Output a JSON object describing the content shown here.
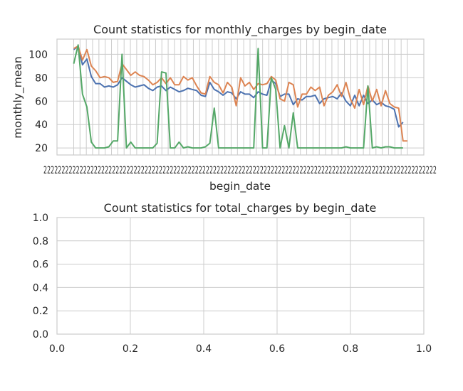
{
  "chart_data": [
    {
      "type": "line",
      "title": "Count statistics for monthly_charges by begin_date",
      "xlabel": "begin_date",
      "ylabel": "monthly_mean",
      "ylim": [
        14,
        113
      ],
      "yticks": [
        20,
        40,
        60,
        80,
        100
      ],
      "grid": true,
      "legend": "none",
      "x_tick_text": "2222222222222222222222222222222222222222222222222222222222222222222222222222222222222222222222222222222222222",
      "series": [
        {
          "color": "#4c72b0",
          "values": [
            104,
            107,
            91,
            96,
            81,
            75,
            75,
            72,
            73,
            72,
            74,
            80,
            77,
            74,
            72,
            73,
            74,
            71,
            69,
            72,
            73,
            69,
            72,
            70,
            68,
            69,
            71,
            70,
            69,
            65,
            64,
            76,
            70,
            68,
            65,
            68,
            67,
            62,
            68,
            66,
            66,
            63,
            68,
            66,
            65,
            78,
            75,
            64,
            66,
            66,
            57,
            62,
            61,
            64,
            64,
            65,
            58,
            62,
            63,
            64,
            62,
            67,
            60,
            56,
            65,
            56,
            65,
            58,
            61,
            57,
            59,
            56,
            55,
            53,
            38,
            42
          ]
        },
        {
          "color": "#dd8452",
          "values": [
            105,
            107,
            95,
            104,
            90,
            86,
            80,
            81,
            80,
            76,
            77,
            92,
            87,
            82,
            85,
            82,
            81,
            78,
            74,
            76,
            80,
            75,
            80,
            74,
            74,
            81,
            78,
            80,
            73,
            67,
            66,
            81,
            76,
            74,
            67,
            76,
            72,
            56,
            80,
            73,
            76,
            70,
            75,
            74,
            75,
            81,
            78,
            62,
            60,
            76,
            74,
            55,
            66,
            66,
            72,
            69,
            72,
            56,
            65,
            68,
            74,
            64,
            76,
            62,
            54,
            70,
            57,
            73,
            60,
            70,
            56,
            69,
            58,
            55,
            54,
            26,
            26
          ]
        },
        {
          "color": "#55a868",
          "values": [
            92,
            108,
            66,
            55,
            25,
            20,
            20,
            20,
            21,
            26,
            26,
            100,
            20,
            25,
            20,
            20,
            20,
            20,
            20,
            24,
            85,
            84,
            20,
            20,
            25,
            20,
            21,
            20,
            20,
            20,
            21,
            24,
            54,
            20,
            20,
            20,
            20,
            20,
            20,
            20,
            20,
            20,
            105,
            20,
            20,
            80,
            70,
            20,
            39,
            20,
            50,
            20,
            20,
            20,
            20,
            20,
            20,
            20,
            20,
            20,
            20,
            20,
            21,
            20,
            20,
            20,
            20,
            73,
            20,
            21,
            20,
            21,
            21,
            20,
            20,
            20
          ]
        }
      ]
    },
    {
      "type": "line",
      "title": "Count statistics for total_charges by begin_date",
      "xlabel": "",
      "ylabel": "",
      "xlim": [
        0,
        1
      ],
      "ylim": [
        0,
        1
      ],
      "xticks": [
        0.0,
        0.2,
        0.4,
        0.6,
        0.8,
        1.0
      ],
      "yticks": [
        0.0,
        0.2,
        0.4,
        0.6,
        0.8,
        1.0
      ],
      "x_tick_labels": [
        "0.0",
        "0.2",
        "0.4",
        "0.6",
        "0.8",
        "1.0"
      ],
      "y_tick_labels": [
        "0.0",
        "0.2",
        "0.4",
        "0.6",
        "0.8",
        "1.0"
      ],
      "grid": true,
      "legend": "none",
      "series": []
    }
  ]
}
